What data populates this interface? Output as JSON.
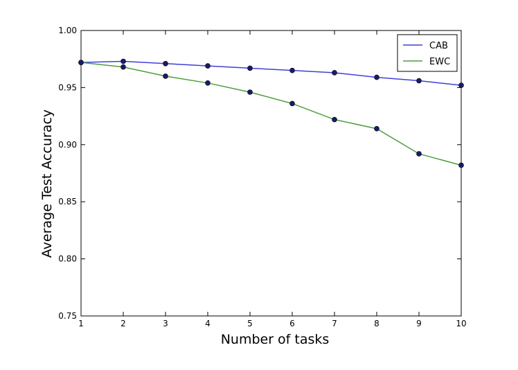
{
  "chart_data": {
    "type": "line",
    "title": "",
    "xlabel": "Number of tasks",
    "ylabel": "Average Test Accuracy",
    "x": [
      1,
      2,
      3,
      4,
      5,
      6,
      7,
      8,
      9,
      10
    ],
    "xlim": [
      1,
      10
    ],
    "ylim": [
      0.75,
      1.0
    ],
    "xticks": [
      "1",
      "2",
      "3",
      "4",
      "5",
      "6",
      "7",
      "8",
      "9",
      "10"
    ],
    "yticks": [
      "0.75",
      "0.80",
      "0.85",
      "0.90",
      "0.95",
      "1.00"
    ],
    "grid": false,
    "legend_position": "top-right",
    "marker_color": "#1a1a6e",
    "series": [
      {
        "name": "CAB",
        "color": "#3f3fd6",
        "values": [
          0.972,
          0.973,
          0.971,
          0.969,
          0.967,
          0.965,
          0.963,
          0.959,
          0.956,
          0.952
        ]
      },
      {
        "name": "EWC",
        "color": "#4c9e3a",
        "values": [
          0.972,
          0.968,
          0.96,
          0.954,
          0.946,
          0.936,
          0.922,
          0.914,
          0.892,
          0.882
        ]
      }
    ]
  }
}
